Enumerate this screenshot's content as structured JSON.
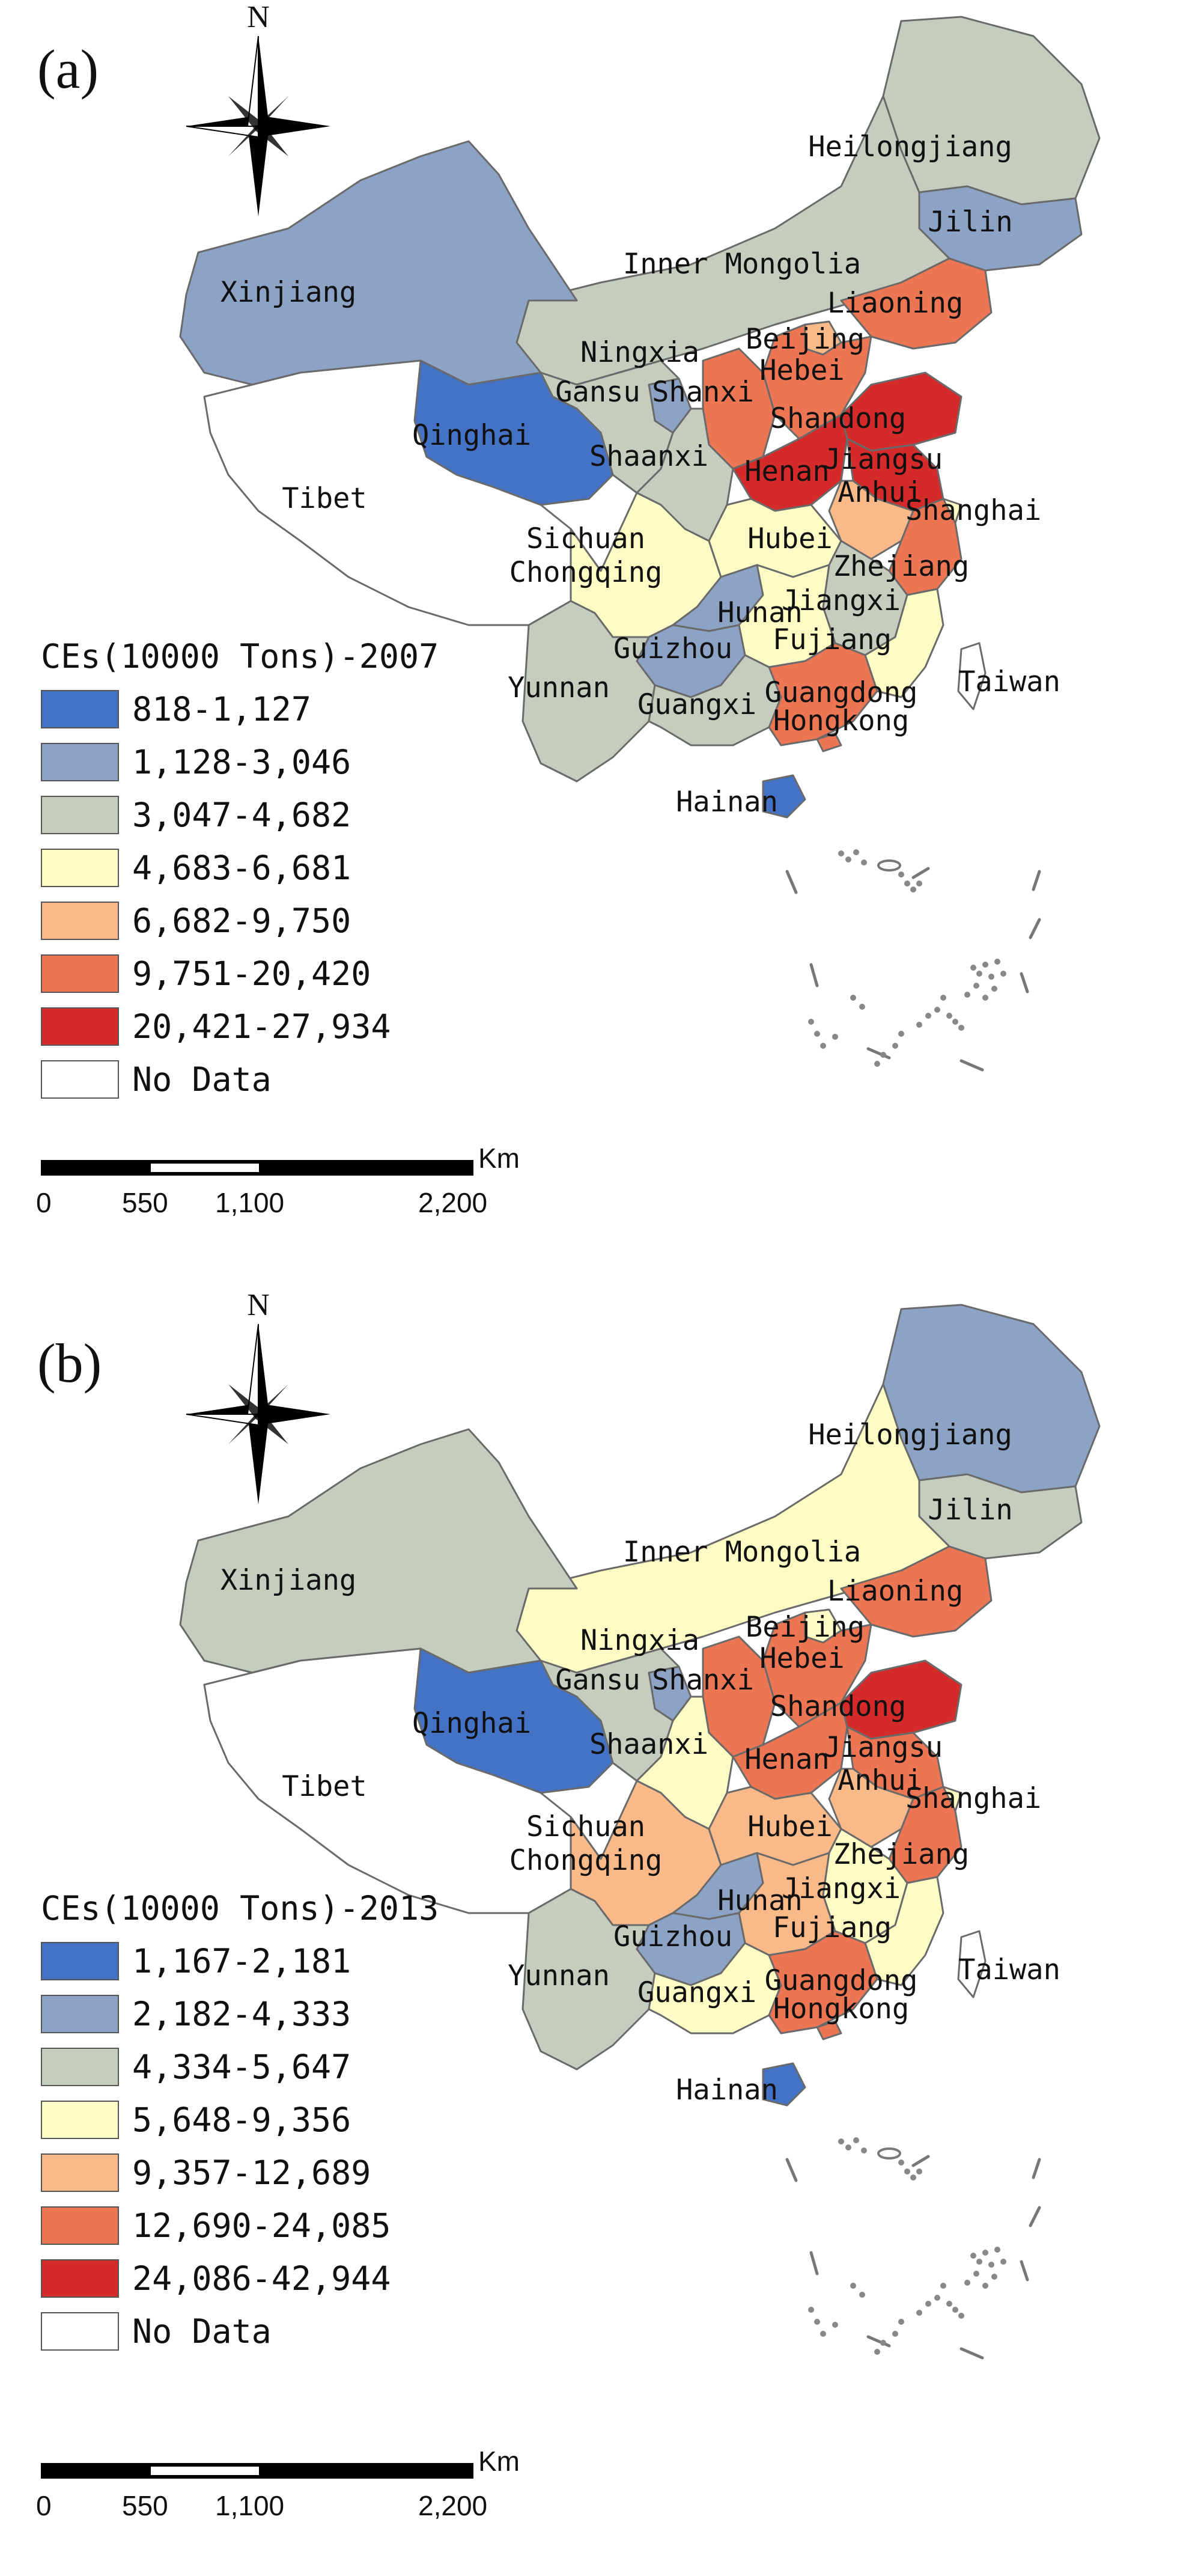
{
  "panels": [
    {
      "label": "(a)",
      "legend": {
        "title": "CEs(10000 Tons)-2007",
        "classes": [
          {
            "label": "818-1,127",
            "color": "#4472c4"
          },
          {
            "label": "1,128-3,046",
            "color": "#8ca3c6"
          },
          {
            "label": "3,047-4,682",
            "color": "#c5cdbf"
          },
          {
            "label": "4,683-6,681",
            "color": "#fcfcc4"
          },
          {
            "label": "6,682-9,750",
            "color": "#f9b988"
          },
          {
            "label": "9,751-20,420",
            "color": "#ec7553"
          },
          {
            "label": "20,421-27,934",
            "color": "#d52a2a"
          },
          {
            "label": "No Data",
            "color": "#ffffff"
          }
        ]
      },
      "provinces": [
        {
          "name": "Heilongjiang",
          "cls": 2
        },
        {
          "name": "Jilin",
          "cls": 1
        },
        {
          "name": "Inner Mongolia",
          "cls": 2
        },
        {
          "name": "Liaoning",
          "cls": 5
        },
        {
          "name": "Xinjiang",
          "cls": 1
        },
        {
          "name": "Beijing",
          "cls": 4
        },
        {
          "name": "Hebei",
          "cls": 5
        },
        {
          "name": "Ningxia",
          "cls": 1
        },
        {
          "name": "Gansu",
          "cls": 2
        },
        {
          "name": "Shanxi",
          "cls": 5
        },
        {
          "name": "Shandong",
          "cls": 6
        },
        {
          "name": "Qinghai",
          "cls": 0
        },
        {
          "name": "Shaanxi",
          "cls": 2
        },
        {
          "name": "Tibet",
          "cls": 7
        },
        {
          "name": "Henan",
          "cls": 6
        },
        {
          "name": "Jiangsu",
          "cls": 6
        },
        {
          "name": "Anhui",
          "cls": 4
        },
        {
          "name": "Shanghai",
          "cls": 3
        },
        {
          "name": "Sichuan",
          "cls": 3
        },
        {
          "name": "Hubei",
          "cls": 3
        },
        {
          "name": "Chongqing",
          "cls": 1
        },
        {
          "name": "Zhejiang",
          "cls": 5
        },
        {
          "name": "Jiangxi",
          "cls": 2
        },
        {
          "name": "Hunan",
          "cls": 3
        },
        {
          "name": "Guizhou",
          "cls": 1
        },
        {
          "name": "Fujiang",
          "cls": 3
        },
        {
          "name": "Yunnan",
          "cls": 2
        },
        {
          "name": "Guangxi",
          "cls": 2
        },
        {
          "name": "Guangdong",
          "cls": 5
        },
        {
          "name": "Taiwan",
          "cls": 7
        },
        {
          "name": "Hongkong",
          "cls": 5
        },
        {
          "name": "Hainan",
          "cls": 0
        }
      ],
      "scale": {
        "unit": "Km",
        "ticks": [
          "0",
          "550",
          "1,100",
          "2,200"
        ]
      }
    },
    {
      "label": "(b)",
      "legend": {
        "title": "CEs(10000 Tons)-2013",
        "classes": [
          {
            "label": "1,167-2,181",
            "color": "#4472c4"
          },
          {
            "label": "2,182-4,333",
            "color": "#8ca3c6"
          },
          {
            "label": "4,334-5,647",
            "color": "#c5cdbf"
          },
          {
            "label": "5,648-9,356",
            "color": "#fcfcc4"
          },
          {
            "label": "9,357-12,689",
            "color": "#f9b988"
          },
          {
            "label": "12,690-24,085",
            "color": "#ec7553"
          },
          {
            "label": "24,086-42,944",
            "color": "#d52a2a"
          },
          {
            "label": "No Data",
            "color": "#ffffff"
          }
        ]
      },
      "provinces": [
        {
          "name": "Heilongjiang",
          "cls": 1
        },
        {
          "name": "Jilin",
          "cls": 2
        },
        {
          "name": "Inner Mongolia",
          "cls": 3
        },
        {
          "name": "Liaoning",
          "cls": 5
        },
        {
          "name": "Xinjiang",
          "cls": 2
        },
        {
          "name": "Beijing",
          "cls": 3
        },
        {
          "name": "Hebei",
          "cls": 5
        },
        {
          "name": "Ningxia",
          "cls": 1
        },
        {
          "name": "Gansu",
          "cls": 2
        },
        {
          "name": "Shanxi",
          "cls": 5
        },
        {
          "name": "Shandong",
          "cls": 6
        },
        {
          "name": "Qinghai",
          "cls": 0
        },
        {
          "name": "Shaanxi",
          "cls": 3
        },
        {
          "name": "Tibet",
          "cls": 7
        },
        {
          "name": "Henan",
          "cls": 5
        },
        {
          "name": "Jiangsu",
          "cls": 5
        },
        {
          "name": "Anhui",
          "cls": 4
        },
        {
          "name": "Shanghai",
          "cls": 3
        },
        {
          "name": "Sichuan",
          "cls": 4
        },
        {
          "name": "Hubei",
          "cls": 4
        },
        {
          "name": "Chongqing",
          "cls": 1
        },
        {
          "name": "Zhejiang",
          "cls": 5
        },
        {
          "name": "Jiangxi",
          "cls": 3
        },
        {
          "name": "Hunan",
          "cls": 4
        },
        {
          "name": "Guizhou",
          "cls": 1
        },
        {
          "name": "Fujiang",
          "cls": 3
        },
        {
          "name": "Yunnan",
          "cls": 2
        },
        {
          "name": "Guangxi",
          "cls": 3
        },
        {
          "name": "Guangdong",
          "cls": 5
        },
        {
          "name": "Taiwan",
          "cls": 7
        },
        {
          "name": "Hongkong",
          "cls": 5
        },
        {
          "name": "Hainan",
          "cls": 0
        }
      ],
      "scale": {
        "unit": "Km",
        "ticks": [
          "0",
          "550",
          "1,100",
          "2,200"
        ]
      }
    }
  ],
  "compass_label": "N"
}
